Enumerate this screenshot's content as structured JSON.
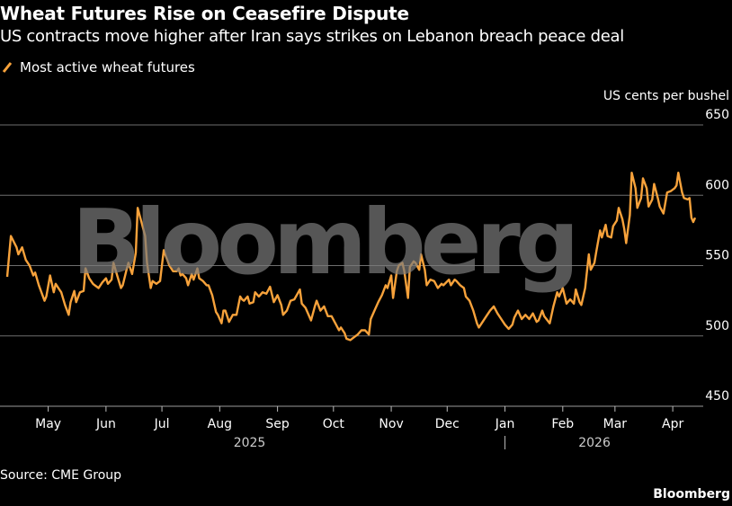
{
  "header": {
    "title": "Wheat Futures Rise on Ceasefire Dispute",
    "subtitle": "US contracts move higher after Iran says strikes on Lebanon breach peace deal"
  },
  "footer": {
    "source": "Source: CME Group",
    "brand": "Bloomberg"
  },
  "watermark": "Bloomberg",
  "colors": {
    "line": "#f7a23b",
    "background": "#000000",
    "grid": "#808080",
    "watermark": "#7a7a7a"
  },
  "chart_data": {
    "type": "line",
    "title": "Wheat Futures Rise on Ceasefire Dispute",
    "subtitle": "US contracts move higher after Iran says strikes on Lebanon breach peace deal",
    "ylabel": "US cents per bushel",
    "xlabel": "",
    "ylim": [
      450,
      650
    ],
    "yticks": [
      450,
      500,
      550,
      600,
      650
    ],
    "grid": true,
    "legend": "top-left",
    "x_range": [
      "2025-04-09",
      "2026-04-13"
    ],
    "xticks": [
      {
        "label": "May",
        "date": "2025-05-01"
      },
      {
        "label": "Jun",
        "date": "2025-06-01"
      },
      {
        "label": "Jul",
        "date": "2025-07-01"
      },
      {
        "label": "Aug",
        "date": "2025-08-01"
      },
      {
        "label": "Sep",
        "date": "2025-09-01"
      },
      {
        "label": "Oct",
        "date": "2025-10-01"
      },
      {
        "label": "Nov",
        "date": "2025-11-01"
      },
      {
        "label": "Dec",
        "date": "2025-12-01"
      },
      {
        "label": "Jan",
        "date": "2026-01-01"
      },
      {
        "label": "Feb",
        "date": "2026-02-01"
      },
      {
        "label": "Mar",
        "date": "2026-03-01"
      },
      {
        "label": "Apr",
        "date": "2026-04-01"
      }
    ],
    "year_labels": [
      {
        "label": "2025",
        "date": "2025-08-17"
      },
      {
        "label": "2026",
        "date": "2026-02-18"
      }
    ],
    "year_divider": "2026-01-01",
    "series": [
      {
        "name": "Most active wheat futures",
        "points": [
          [
            "2025-04-09",
            542
          ],
          [
            "2025-04-11",
            571
          ],
          [
            "2025-04-14",
            563
          ],
          [
            "2025-04-15",
            558
          ],
          [
            "2025-04-17",
            563
          ],
          [
            "2025-04-19",
            554
          ],
          [
            "2025-04-21",
            550
          ],
          [
            "2025-04-23",
            543
          ],
          [
            "2025-04-24",
            545
          ],
          [
            "2025-04-26",
            536
          ],
          [
            "2025-04-29",
            525
          ],
          [
            "2025-04-30",
            528
          ],
          [
            "2025-05-02",
            543
          ],
          [
            "2025-05-04",
            531
          ],
          [
            "2025-05-05",
            537
          ],
          [
            "2025-05-07",
            533
          ],
          [
            "2025-05-08",
            531
          ],
          [
            "2025-05-10",
            522
          ],
          [
            "2025-05-12",
            515
          ],
          [
            "2025-05-13",
            524
          ],
          [
            "2025-05-15",
            532
          ],
          [
            "2025-05-16",
            524
          ],
          [
            "2025-05-18",
            531
          ],
          [
            "2025-05-20",
            532
          ],
          [
            "2025-05-21",
            548
          ],
          [
            "2025-05-23",
            541
          ],
          [
            "2025-05-25",
            537
          ],
          [
            "2025-05-26",
            536
          ],
          [
            "2025-05-28",
            534
          ],
          [
            "2025-05-30",
            538
          ],
          [
            "2025-06-01",
            541
          ],
          [
            "2025-06-02",
            537
          ],
          [
            "2025-06-04",
            540
          ],
          [
            "2025-06-05",
            552
          ],
          [
            "2025-06-07",
            543
          ],
          [
            "2025-06-09",
            534
          ],
          [
            "2025-06-10",
            536
          ],
          [
            "2025-06-12",
            547
          ],
          [
            "2025-06-13",
            552
          ],
          [
            "2025-06-15",
            544
          ],
          [
            "2025-06-17",
            559
          ],
          [
            "2025-06-18",
            591
          ],
          [
            "2025-06-20",
            581
          ],
          [
            "2025-06-22",
            571
          ],
          [
            "2025-06-23",
            552
          ],
          [
            "2025-06-25",
            534
          ],
          [
            "2025-06-26",
            539
          ],
          [
            "2025-06-28",
            537
          ],
          [
            "2025-06-30",
            539
          ],
          [
            "2025-07-02",
            561
          ],
          [
            "2025-07-03",
            557
          ],
          [
            "2025-07-05",
            550
          ],
          [
            "2025-07-07",
            546
          ],
          [
            "2025-07-09",
            546
          ],
          [
            "2025-07-10",
            548
          ],
          [
            "2025-07-11",
            543
          ],
          [
            "2025-07-12",
            544
          ],
          [
            "2025-07-14",
            541
          ],
          [
            "2025-07-15",
            536
          ],
          [
            "2025-07-17",
            544
          ],
          [
            "2025-07-18",
            540
          ],
          [
            "2025-07-20",
            548
          ],
          [
            "2025-07-21",
            541
          ],
          [
            "2025-07-23",
            539
          ],
          [
            "2025-07-25",
            536
          ],
          [
            "2025-07-26",
            536
          ],
          [
            "2025-07-28",
            529
          ],
          [
            "2025-07-30",
            517
          ],
          [
            "2025-07-31",
            515
          ],
          [
            "2025-08-02",
            509
          ],
          [
            "2025-08-03",
            518
          ],
          [
            "2025-08-04",
            518
          ],
          [
            "2025-08-06",
            510
          ],
          [
            "2025-08-08",
            515
          ],
          [
            "2025-08-10",
            515
          ],
          [
            "2025-08-12",
            528
          ],
          [
            "2025-08-13",
            526
          ],
          [
            "2025-08-14",
            525
          ],
          [
            "2025-08-16",
            528
          ],
          [
            "2025-08-17",
            523
          ],
          [
            "2025-08-19",
            524
          ],
          [
            "2025-08-20",
            531
          ],
          [
            "2025-08-22",
            528
          ],
          [
            "2025-08-24",
            531
          ],
          [
            "2025-08-26",
            530
          ],
          [
            "2025-08-28",
            535
          ],
          [
            "2025-08-30",
            524
          ],
          [
            "2025-09-01",
            529
          ],
          [
            "2025-09-03",
            522
          ],
          [
            "2025-09-04",
            515
          ],
          [
            "2025-09-06",
            518
          ],
          [
            "2025-09-08",
            525
          ],
          [
            "2025-09-10",
            526
          ],
          [
            "2025-09-13",
            533
          ],
          [
            "2025-09-14",
            523
          ],
          [
            "2025-09-16",
            520
          ],
          [
            "2025-09-19",
            511
          ],
          [
            "2025-09-21",
            521
          ],
          [
            "2025-09-22",
            525
          ],
          [
            "2025-09-24",
            518
          ],
          [
            "2025-09-26",
            521
          ],
          [
            "2025-09-28",
            514
          ],
          [
            "2025-09-30",
            514
          ],
          [
            "2025-10-02",
            509
          ],
          [
            "2025-10-04",
            504
          ],
          [
            "2025-10-05",
            506
          ],
          [
            "2025-10-07",
            502
          ],
          [
            "2025-10-08",
            498
          ],
          [
            "2025-10-10",
            497
          ],
          [
            "2025-10-12",
            499
          ],
          [
            "2025-10-14",
            501
          ],
          [
            "2025-10-16",
            504
          ],
          [
            "2025-10-18",
            504
          ],
          [
            "2025-10-20",
            501
          ],
          [
            "2025-10-21",
            512
          ],
          [
            "2025-10-23",
            518
          ],
          [
            "2025-10-25",
            524
          ],
          [
            "2025-10-27",
            529
          ],
          [
            "2025-10-29",
            536
          ],
          [
            "2025-10-30",
            534
          ],
          [
            "2025-11-01",
            543
          ],
          [
            "2025-11-02",
            527
          ],
          [
            "2025-11-04",
            546
          ],
          [
            "2025-11-05",
            550
          ],
          [
            "2025-11-07",
            552
          ],
          [
            "2025-11-08",
            546
          ],
          [
            "2025-11-10",
            527
          ],
          [
            "2025-11-11",
            549
          ],
          [
            "2025-11-13",
            553
          ],
          [
            "2025-11-14",
            552
          ],
          [
            "2025-11-16",
            547
          ],
          [
            "2025-11-17",
            558
          ],
          [
            "2025-11-19",
            547
          ],
          [
            "2025-11-20",
            536
          ],
          [
            "2025-11-22",
            540
          ],
          [
            "2025-11-24",
            539
          ],
          [
            "2025-11-26",
            534
          ],
          [
            "2025-11-28",
            537
          ],
          [
            "2025-11-29",
            536
          ],
          [
            "2025-12-02",
            540
          ],
          [
            "2025-12-03",
            536
          ],
          [
            "2025-12-05",
            540
          ],
          [
            "2025-12-06",
            539
          ],
          [
            "2025-12-08",
            536
          ],
          [
            "2025-12-10",
            534
          ],
          [
            "2025-12-11",
            528
          ],
          [
            "2025-12-13",
            525
          ],
          [
            "2025-12-15",
            518
          ],
          [
            "2025-12-17",
            509
          ],
          [
            "2025-12-18",
            506
          ],
          [
            "2025-12-20",
            510
          ],
          [
            "2025-12-22",
            514
          ],
          [
            "2025-12-24",
            518
          ],
          [
            "2025-12-26",
            521
          ],
          [
            "2025-12-28",
            516
          ],
          [
            "2025-12-30",
            512
          ],
          [
            "2026-01-01",
            508
          ],
          [
            "2026-01-03",
            505
          ],
          [
            "2026-01-05",
            508
          ],
          [
            "2026-01-06",
            513
          ],
          [
            "2026-01-08",
            518
          ],
          [
            "2026-01-10",
            512
          ],
          [
            "2026-01-12",
            515
          ],
          [
            "2026-01-14",
            512
          ],
          [
            "2026-01-16",
            516
          ],
          [
            "2026-01-18",
            510
          ],
          [
            "2026-01-19",
            511
          ],
          [
            "2026-01-21",
            518
          ],
          [
            "2026-01-22",
            514
          ],
          [
            "2026-01-25",
            509
          ],
          [
            "2026-01-27",
            521
          ],
          [
            "2026-01-29",
            531
          ],
          [
            "2026-01-30",
            528
          ],
          [
            "2026-02-01",
            534
          ],
          [
            "2026-02-03",
            523
          ],
          [
            "2026-02-05",
            526
          ],
          [
            "2026-02-07",
            523
          ],
          [
            "2026-02-08",
            533
          ],
          [
            "2026-02-10",
            524
          ],
          [
            "2026-02-11",
            522
          ],
          [
            "2026-02-13",
            534
          ],
          [
            "2026-02-15",
            558
          ],
          [
            "2026-02-16",
            547
          ],
          [
            "2026-02-18",
            552
          ],
          [
            "2026-02-19",
            560
          ],
          [
            "2026-02-21",
            575
          ],
          [
            "2026-02-22",
            570
          ],
          [
            "2026-02-24",
            579
          ],
          [
            "2026-02-25",
            571
          ],
          [
            "2026-02-27",
            570
          ],
          [
            "2026-02-28",
            578
          ],
          [
            "2026-03-02",
            582
          ],
          [
            "2026-03-03",
            591
          ],
          [
            "2026-03-05",
            583
          ],
          [
            "2026-03-06",
            576
          ],
          [
            "2026-03-07",
            566
          ],
          [
            "2026-03-09",
            586
          ],
          [
            "2026-03-10",
            616
          ],
          [
            "2026-03-12",
            605
          ],
          [
            "2026-03-13",
            591
          ],
          [
            "2026-03-15",
            598
          ],
          [
            "2026-03-16",
            612
          ],
          [
            "2026-03-18",
            605
          ],
          [
            "2026-03-19",
            592
          ],
          [
            "2026-03-21",
            597
          ],
          [
            "2026-03-22",
            608
          ],
          [
            "2026-03-24",
            598
          ],
          [
            "2026-03-25",
            592
          ],
          [
            "2026-03-27",
            587
          ],
          [
            "2026-03-29",
            602
          ],
          [
            "2026-03-31",
            603
          ],
          [
            "2026-04-02",
            605
          ],
          [
            "2026-04-03",
            607
          ],
          [
            "2026-04-04",
            616
          ],
          [
            "2026-04-06",
            602
          ],
          [
            "2026-04-07",
            598
          ],
          [
            "2026-04-09",
            597
          ],
          [
            "2026-04-10",
            598
          ],
          [
            "2026-04-11",
            584
          ],
          [
            "2026-04-12",
            581
          ],
          [
            "2026-04-13",
            584
          ]
        ]
      }
    ]
  }
}
